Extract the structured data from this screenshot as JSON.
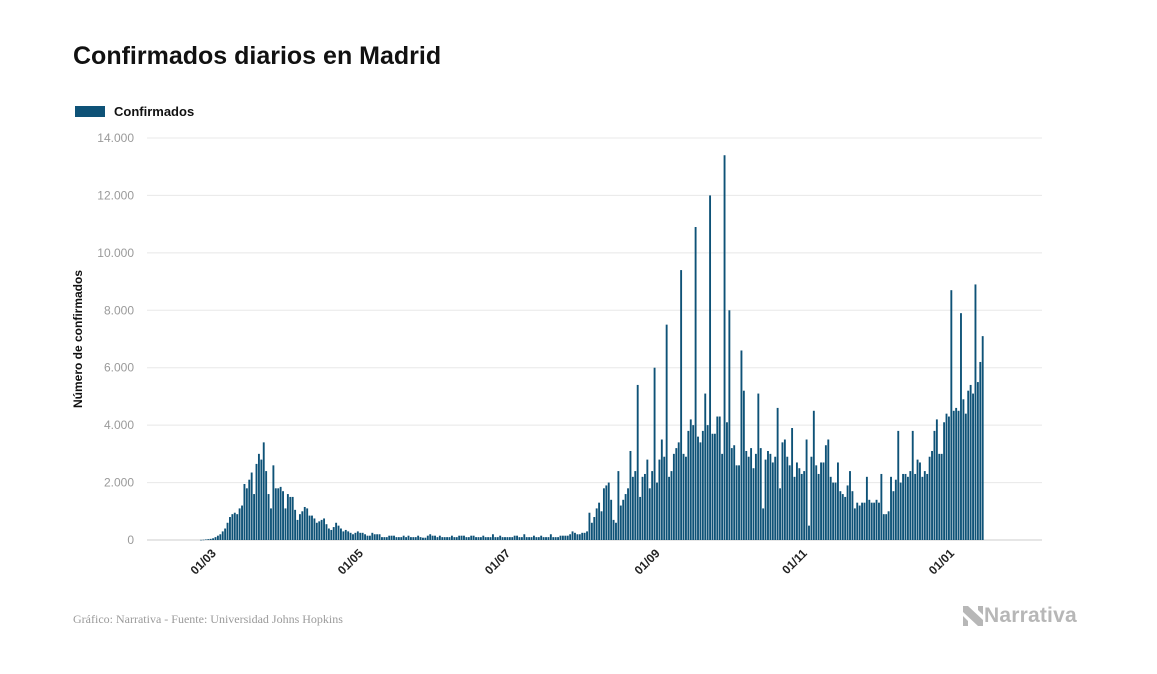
{
  "page": {
    "title": "Confirmados diarios en Madrid",
    "source": "Gráfico: Narrativa - Fuente: Universidad Johns Hopkins",
    "brand": "Narrativa",
    "brand_icon": "narrativa-logo-icon"
  },
  "colors": {
    "bar": "#0e5277",
    "grid": "#e8e8e8",
    "axis": "#cccccc"
  },
  "chart_data": {
    "type": "bar",
    "title": "Confirmados diarios en Madrid",
    "xlabel": "",
    "ylabel": "Número de confirmados",
    "ylim": [
      0,
      14000
    ],
    "yticks": [
      0,
      2000,
      4000,
      6000,
      8000,
      10000,
      12000,
      14000
    ],
    "ytick_labels": [
      "0",
      "2.000",
      "4.000",
      "6.000",
      "8.000",
      "10.000",
      "12.000",
      "14.000"
    ],
    "xtick_labels": [
      "01/03",
      "01/05",
      "01/07",
      "01/09",
      "01/11",
      "01/01"
    ],
    "xtick_dates": [
      "2020-03-01",
      "2020-05-01",
      "2020-07-01",
      "2020-09-01",
      "2020-11-01",
      "2021-01-01"
    ],
    "legend": {
      "position": "top-left",
      "entries": [
        "Confirmados"
      ]
    },
    "grid": true,
    "series": [
      {
        "name": "Confirmados",
        "x_start": "2020-02-09",
        "x_end": "2021-01-23",
        "values": [
          0,
          0,
          0,
          0,
          0,
          0,
          0,
          0,
          0,
          0,
          0,
          0,
          0,
          0,
          0,
          0,
          0,
          5,
          10,
          20,
          30,
          40,
          60,
          100,
          150,
          200,
          300,
          400,
          600,
          800,
          900,
          950,
          900,
          1100,
          1200,
          1950,
          1800,
          2100,
          2350,
          1600,
          2650,
          3000,
          2800,
          3400,
          2400,
          1600,
          1100,
          2600,
          1800,
          1800,
          1850,
          1700,
          1100,
          1600,
          1500,
          1500,
          1050,
          700,
          900,
          1000,
          1150,
          1100,
          850,
          850,
          750,
          600,
          650,
          700,
          750,
          550,
          400,
          350,
          450,
          600,
          500,
          400,
          300,
          350,
          300,
          250,
          200,
          250,
          300,
          250,
          250,
          200,
          150,
          150,
          250,
          200,
          200,
          200,
          100,
          100,
          100,
          150,
          150,
          150,
          100,
          100,
          100,
          150,
          100,
          150,
          100,
          100,
          100,
          150,
          100,
          80,
          80,
          150,
          200,
          150,
          150,
          100,
          150,
          100,
          100,
          100,
          100,
          150,
          100,
          100,
          150,
          150,
          150,
          100,
          100,
          150,
          150,
          100,
          100,
          100,
          150,
          100,
          100,
          100,
          200,
          100,
          100,
          150,
          100,
          100,
          100,
          100,
          100,
          150,
          150,
          100,
          100,
          200,
          100,
          100,
          100,
          150,
          100,
          100,
          150,
          100,
          100,
          100,
          200,
          100,
          100,
          100,
          150,
          150,
          150,
          150,
          200,
          300,
          250,
          200,
          200,
          250,
          250,
          300,
          950,
          600,
          800,
          1100,
          1300,
          1000,
          1800,
          1900,
          2000,
          1400,
          700,
          600,
          2400,
          1200,
          1400,
          1600,
          1800,
          3100,
          2200,
          2400,
          5400,
          1500,
          2200,
          2300,
          2800,
          1800,
          2400,
          6000,
          2000,
          2800,
          3500,
          2900,
          7500,
          2200,
          2400,
          3000,
          3200,
          3400,
          9400,
          3000,
          2900,
          3800,
          4200,
          4000,
          10900,
          3600,
          3400,
          3800,
          5100,
          4000,
          12000,
          3700,
          3700,
          4300,
          4300,
          3000,
          13400,
          4100,
          8000,
          3200,
          3300,
          2600,
          2600,
          6600,
          5200,
          3100,
          2900,
          3200,
          2500,
          3000,
          5100,
          3200,
          1100,
          2800,
          3100,
          3000,
          2700,
          2900,
          4600,
          1800,
          3400,
          3500,
          2900,
          2600,
          3900,
          2200,
          2700,
          2500,
          2300,
          2400,
          3500,
          500,
          2900,
          4500,
          2600,
          2300,
          2700,
          2700,
          3300,
          3500,
          2200,
          2000,
          2000,
          2700,
          1700,
          1600,
          1500,
          1900,
          2400,
          1700,
          1100,
          1300,
          1200,
          1300,
          1300,
          2200,
          1400,
          1300,
          1300,
          1400,
          1300,
          2300,
          900,
          900,
          1000,
          2200,
          1700,
          2100,
          3800,
          2000,
          2300,
          2300,
          2200,
          2400,
          3800,
          2300,
          2800,
          2700,
          2200,
          2400,
          2300,
          2900,
          3100,
          3800,
          4200,
          3000,
          3000,
          4100,
          4400,
          4300,
          8700,
          4500,
          4600,
          4500,
          7900,
          4900,
          4400,
          5200,
          5400,
          5100,
          8900,
          5500,
          6200,
          7100
        ]
      }
    ]
  }
}
